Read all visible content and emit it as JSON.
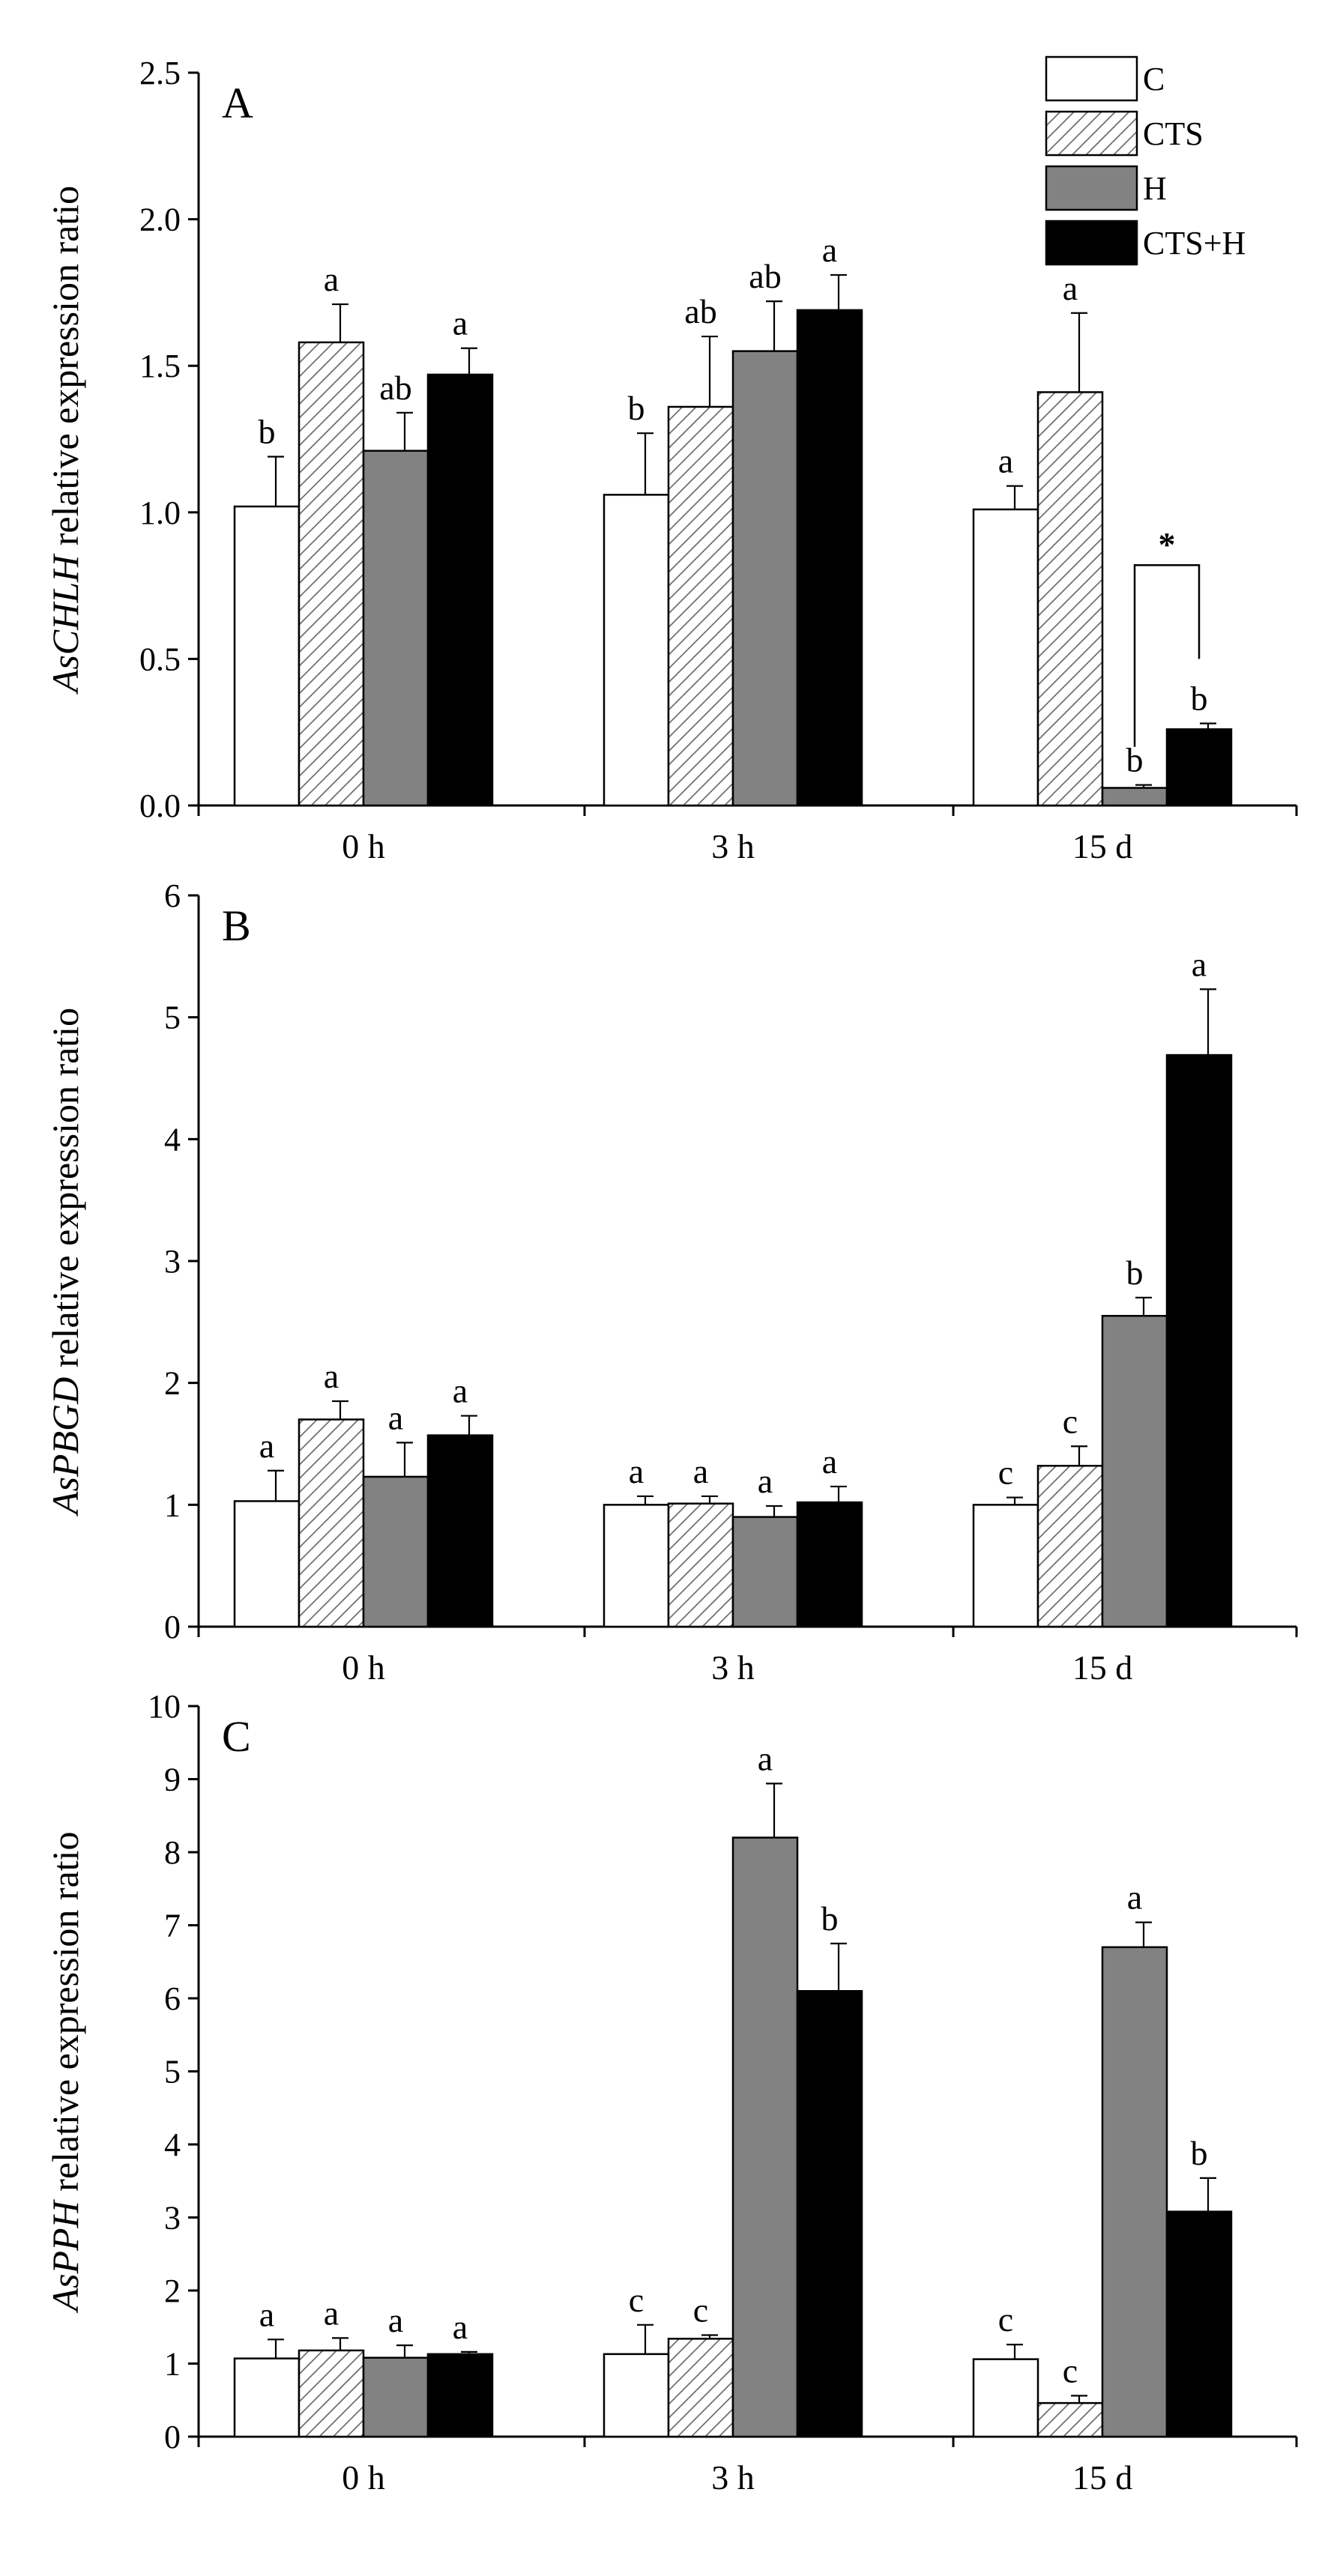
{
  "chart_data": [
    {
      "type": "bar",
      "panel_label": "A",
      "ylabel_gene": "AsCHLH",
      "ylabel_rest": " relative expression ratio",
      "ylim": [
        0,
        2.5
      ],
      "yticks": [
        "0.0",
        "0.5",
        "1.0",
        "1.5",
        "2.0",
        "2.5"
      ],
      "ytick_values": [
        0,
        0.5,
        1.0,
        1.5,
        2.0,
        2.5
      ],
      "categories": [
        "0 h",
        "3 h",
        "15 d"
      ],
      "series": [
        {
          "name": "C",
          "values": [
            1.02,
            1.06,
            1.01
          ],
          "errors": [
            0.17,
            0.21,
            0.08
          ],
          "labels": [
            "b",
            "b",
            "a"
          ]
        },
        {
          "name": "CTS",
          "values": [
            1.58,
            1.36,
            1.41
          ],
          "errors": [
            0.13,
            0.24,
            0.27
          ],
          "labels": [
            "a",
            "ab",
            "a"
          ]
        },
        {
          "name": "H",
          "values": [
            1.21,
            1.55,
            0.06
          ],
          "errors": [
            0.13,
            0.17,
            0.01
          ],
          "labels": [
            "ab",
            "ab",
            "b"
          ]
        },
        {
          "name": "CTS+H",
          "values": [
            1.47,
            1.69,
            0.26
          ],
          "errors": [
            0.09,
            0.12,
            0.02
          ],
          "labels": [
            "a",
            "a",
            "b"
          ]
        }
      ],
      "significance": {
        "category_index": 2,
        "series": [
          2,
          3
        ],
        "mark": "*"
      }
    },
    {
      "type": "bar",
      "panel_label": "B",
      "ylabel_gene": "AsPBGD",
      "ylabel_rest": " relative expression ratio",
      "ylim": [
        0,
        6
      ],
      "yticks": [
        "0",
        "1",
        "2",
        "3",
        "4",
        "5",
        "6"
      ],
      "ytick_values": [
        0,
        1,
        2,
        3,
        4,
        5,
        6
      ],
      "categories": [
        "0 h",
        "3 h",
        "15 d"
      ],
      "series": [
        {
          "name": "C",
          "values": [
            1.03,
            1.0,
            1.0
          ],
          "errors": [
            0.25,
            0.07,
            0.06
          ],
          "labels": [
            "a",
            "a",
            "c"
          ]
        },
        {
          "name": "CTS",
          "values": [
            1.7,
            1.01,
            1.32
          ],
          "errors": [
            0.15,
            0.06,
            0.16
          ],
          "labels": [
            "a",
            "a",
            "c"
          ]
        },
        {
          "name": "H",
          "values": [
            1.23,
            0.9,
            2.55
          ],
          "errors": [
            0.28,
            0.09,
            0.15
          ],
          "labels": [
            "a",
            "a",
            "b"
          ]
        },
        {
          "name": "CTS+H",
          "values": [
            1.57,
            1.02,
            4.69
          ],
          "errors": [
            0.16,
            0.13,
            0.54
          ],
          "labels": [
            "a",
            "a",
            "a"
          ]
        }
      ]
    },
    {
      "type": "bar",
      "panel_label": "C",
      "ylabel_gene": "AsPPH",
      "ylabel_rest": " relative expression ratio",
      "ylim": [
        0,
        10
      ],
      "yticks": [
        "0",
        "1",
        "2",
        "3",
        "4",
        "5",
        "6",
        "7",
        "8",
        "9",
        "10"
      ],
      "ytick_values": [
        0,
        1,
        2,
        3,
        4,
        5,
        6,
        7,
        8,
        9,
        10
      ],
      "categories": [
        "0 h",
        "3 h",
        "15 d"
      ],
      "series": [
        {
          "name": "C",
          "values": [
            1.07,
            1.13,
            1.06
          ],
          "errors": [
            0.26,
            0.4,
            0.2
          ],
          "labels": [
            "a",
            "c",
            "c"
          ]
        },
        {
          "name": "CTS",
          "values": [
            1.18,
            1.34,
            0.46
          ],
          "errors": [
            0.17,
            0.05,
            0.1
          ],
          "labels": [
            "a",
            "c",
            "c"
          ]
        },
        {
          "name": "H",
          "values": [
            1.08,
            8.2,
            6.7
          ],
          "errors": [
            0.17,
            0.74,
            0.34
          ],
          "labels": [
            "a",
            "a",
            "a"
          ]
        },
        {
          "name": "CTS+H",
          "values": [
            1.13,
            6.1,
            3.08
          ],
          "errors": [
            0.03,
            0.65,
            0.46
          ],
          "labels": [
            "a",
            "b",
            "b"
          ]
        }
      ]
    }
  ],
  "legend": {
    "entries": [
      "C",
      "CTS",
      "H",
      "CTS+H"
    ],
    "position": "top-right"
  },
  "colors": {
    "C": "#ffffff",
    "CTS": "#ffffff",
    "CTS_hatch": "#6a6a6a",
    "H": "#828282",
    "CTS+H": "#000000",
    "axis": "#000000"
  }
}
